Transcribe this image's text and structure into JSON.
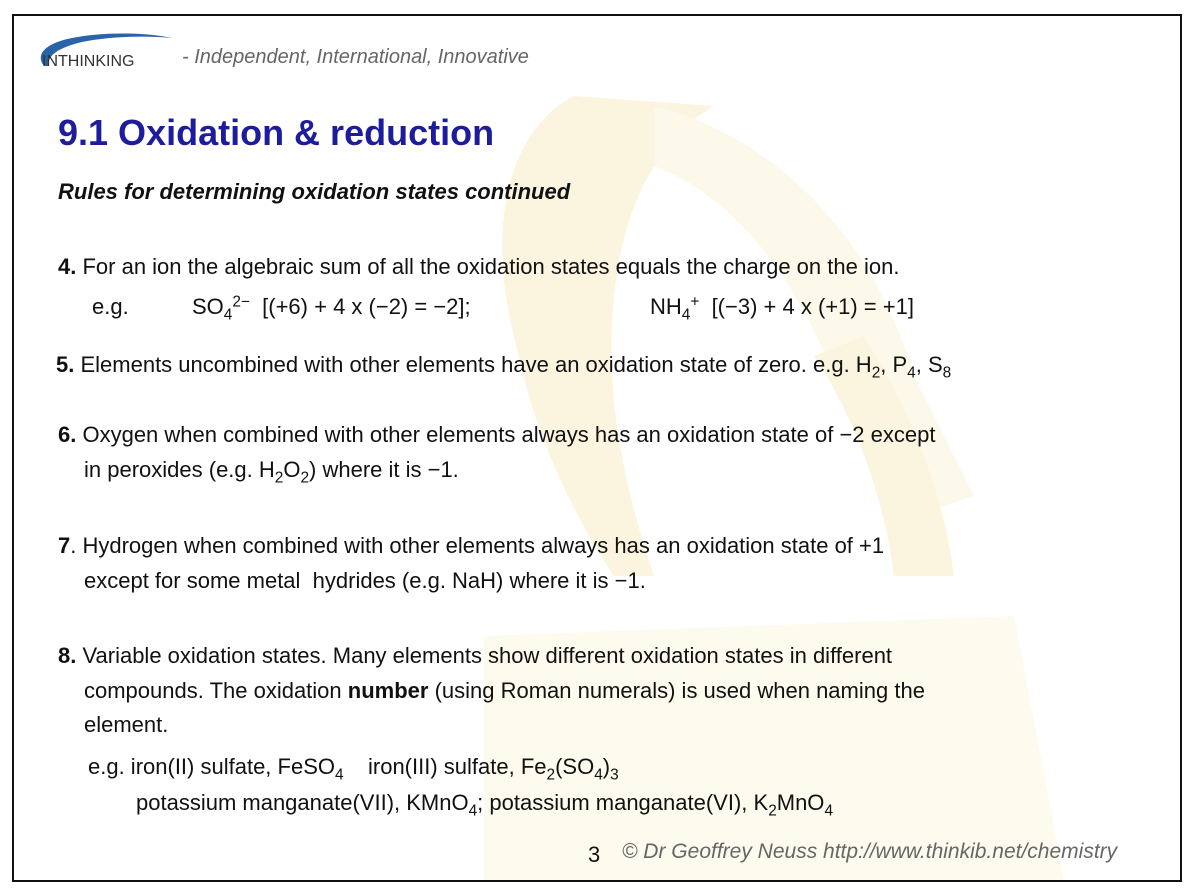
{
  "header": {
    "logo_text": "INTHINKING",
    "tagline": "- Independent, International, Innovative",
    "brand_color": "#2a64a8"
  },
  "title": "9.1 Oxidation & reduction",
  "subtitle": "Rules for determining oxidation states continued",
  "title_color": "#1c1c9c",
  "lines": [
    [
      {
        "t": "4.",
        "b": true
      },
      {
        "t": " For an ion the algebraic sum of all the oxidation states equals the charge on the ion."
      }
    ],
    [
      {
        "t": "e.g."
      }
    ],
    [
      {
        "t": "SO"
      },
      {
        "t": "4",
        "sub": true
      },
      {
        "t": "2−",
        "sup": true
      },
      {
        "t": "  [(+6) + 4 x (−2) = −2];"
      }
    ],
    [
      {
        "t": "NH"
      },
      {
        "t": "4",
        "sub": true
      },
      {
        "t": "+",
        "sup": true
      },
      {
        "t": "  [(−3) + 4 x (+1) = +1]"
      }
    ],
    [
      {
        "t": "5.",
        "b": true
      },
      {
        "t": " Elements uncombined with other elements have an oxidation state of zero. e.g. H"
      },
      {
        "t": "2",
        "sub": true
      },
      {
        "t": ", P"
      },
      {
        "t": "4",
        "sub": true
      },
      {
        "t": ", S"
      },
      {
        "t": "8",
        "sub": true
      }
    ],
    [
      {
        "t": "6.",
        "b": true
      },
      {
        "t": " Oxygen when combined with other elements always has an oxidation state of −2 except"
      }
    ],
    [
      {
        "t": "in peroxides (e.g. H"
      },
      {
        "t": "2",
        "sub": true
      },
      {
        "t": "O"
      },
      {
        "t": "2",
        "sub": true
      },
      {
        "t": ") where it is −1."
      }
    ],
    [
      {
        "t": "7",
        "b": true
      },
      {
        "t": ". Hydrogen when combined with other elements always has an oxidation state of +1"
      }
    ],
    [
      {
        "t": "except for some metal  hydrides (e.g. NaH) where it is −1."
      }
    ],
    [
      {
        "t": "8.",
        "b": true
      },
      {
        "t": " Variable oxidation states. Many elements show different oxidation states in different"
      }
    ],
    [
      {
        "t": "compounds. The oxidation "
      },
      {
        "t": "number",
        "b": true
      },
      {
        "t": " (using Roman numerals) is used when naming the"
      }
    ],
    [
      {
        "t": "element."
      }
    ],
    [
      {
        "t": "e.g. iron(II) sulfate, FeSO"
      },
      {
        "t": "4",
        "sub": true
      },
      {
        "t": "    iron(III) sulfate, Fe"
      },
      {
        "t": "2",
        "sub": true
      },
      {
        "t": "(SO"
      },
      {
        "t": "4",
        "sub": true
      },
      {
        "t": ")"
      },
      {
        "t": "3",
        "sub": true
      }
    ],
    [
      {
        "t": "potassium manganate(VII), KMnO"
      },
      {
        "t": "4",
        "sub": true
      },
      {
        "t": "; potassium manganate(VI), K"
      },
      {
        "t": "2",
        "sub": true
      },
      {
        "t": "MnO"
      },
      {
        "t": "4",
        "sub": true
      }
    ]
  ],
  "footer": {
    "page_number": "3",
    "copyright": "© Dr Geoffrey Neuss http://www.thinkib.net/chemistry"
  }
}
